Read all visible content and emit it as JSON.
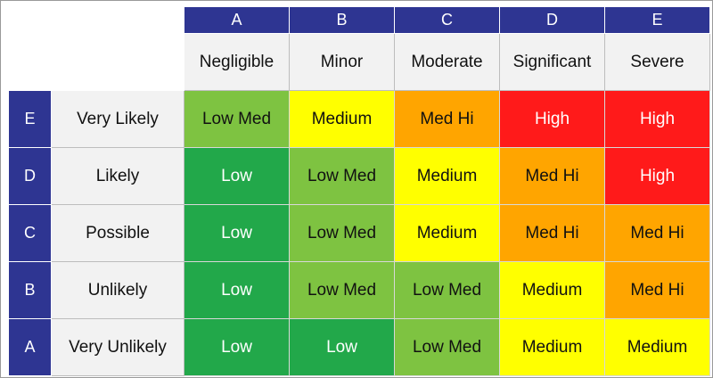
{
  "columns": [
    {
      "code": "A",
      "label": "Negligible"
    },
    {
      "code": "B",
      "label": "Minor"
    },
    {
      "code": "C",
      "label": "Moderate"
    },
    {
      "code": "D",
      "label": "Significant"
    },
    {
      "code": "E",
      "label": "Severe"
    }
  ],
  "rows": [
    {
      "code": "E",
      "label": "Very Likely",
      "cells": [
        "Low Med",
        "Medium",
        "Med Hi",
        "High",
        "High"
      ]
    },
    {
      "code": "D",
      "label": "Likely",
      "cells": [
        "Low",
        "Low Med",
        "Medium",
        "Med Hi",
        "High"
      ]
    },
    {
      "code": "C",
      "label": "Possible",
      "cells": [
        "Low",
        "Low Med",
        "Medium",
        "Med Hi",
        "Med Hi"
      ]
    },
    {
      "code": "B",
      "label": "Unlikely",
      "cells": [
        "Low",
        "Low Med",
        "Low Med",
        "Medium",
        "Med Hi"
      ]
    },
    {
      "code": "A",
      "label": "Very Unlikely",
      "cells": [
        "Low",
        "Low",
        "Low Med",
        "Medium",
        "Medium"
      ]
    }
  ],
  "level_colors": {
    "Low": "#22a84a",
    "Low Med": "#7ec341",
    "Medium": "#ffff00",
    "Med Hi": "#ffa500",
    "High": "#ff1a1a"
  }
}
